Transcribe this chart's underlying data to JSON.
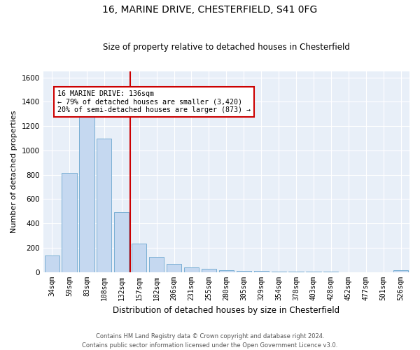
{
  "title1": "16, MARINE DRIVE, CHESTERFIELD, S41 0FG",
  "title2": "Size of property relative to detached houses in Chesterfield",
  "xlabel": "Distribution of detached houses by size in Chesterfield",
  "ylabel": "Number of detached properties",
  "footer1": "Contains HM Land Registry data © Crown copyright and database right 2024.",
  "footer2": "Contains public sector information licensed under the Open Government Licence v3.0.",
  "bar_color": "#c5d8f0",
  "bar_edge_color": "#7aafd4",
  "background_color": "#e8eff8",
  "annotation_box_color": "#cc0000",
  "vline_color": "#cc0000",
  "bin_labels": [
    "34sqm",
    "59sqm",
    "83sqm",
    "108sqm",
    "132sqm",
    "157sqm",
    "182sqm",
    "206sqm",
    "231sqm",
    "255sqm",
    "280sqm",
    "305sqm",
    "329sqm",
    "354sqm",
    "378sqm",
    "403sqm",
    "428sqm",
    "452sqm",
    "477sqm",
    "501sqm",
    "526sqm"
  ],
  "bar_values": [
    135,
    815,
    1285,
    1095,
    495,
    235,
    125,
    65,
    38,
    27,
    15,
    10,
    8,
    5,
    2,
    1,
    2,
    0,
    0,
    0,
    12
  ],
  "vline_bin_index": 4,
  "annotation_line1": "16 MARINE DRIVE: 136sqm",
  "annotation_line2": "← 79% of detached houses are smaller (3,420)",
  "annotation_line3": "20% of semi-detached houses are larger (873) →",
  "ylim": [
    0,
    1650
  ],
  "yticks": [
    0,
    200,
    400,
    600,
    800,
    1000,
    1200,
    1400,
    1600
  ],
  "figsize": [
    6.0,
    5.0
  ],
  "dpi": 100
}
